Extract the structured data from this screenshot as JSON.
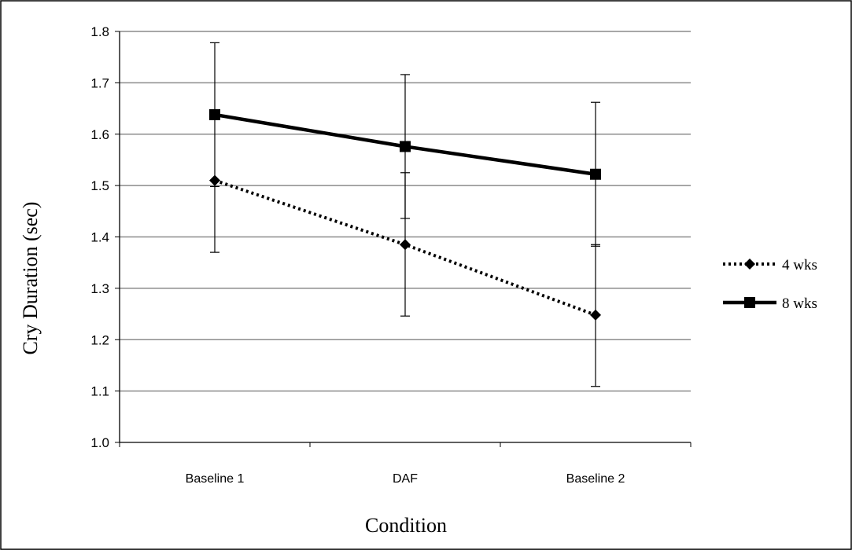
{
  "chart_data": {
    "type": "line",
    "categories": [
      "Baseline 1",
      "DAF",
      "Baseline 2"
    ],
    "series": [
      {
        "name": "4 wks",
        "values": [
          1.51,
          1.385,
          1.248
        ],
        "error_upper": [
          1.51,
          1.525,
          1.385
        ],
        "error_lower": [
          1.37,
          1.246,
          1.109
        ],
        "line_style": "dotted",
        "marker": "diamond",
        "color": "#000000"
      },
      {
        "name": "8 wks",
        "values": [
          1.638,
          1.576,
          1.522
        ],
        "error_upper": [
          1.778,
          1.716,
          1.662
        ],
        "error_lower": [
          1.498,
          1.436,
          1.382
        ],
        "line_style": "solid",
        "marker": "square",
        "color": "#000000"
      }
    ],
    "xlabel": "Condition",
    "ylabel": "Cry Duration (sec)",
    "ylim": [
      1.0,
      1.8
    ],
    "yticks": [
      "1.0",
      "1.1",
      "1.2",
      "1.3",
      "1.4",
      "1.5",
      "1.6",
      "1.7",
      "1.8"
    ],
    "grid": true,
    "legend": "right"
  }
}
